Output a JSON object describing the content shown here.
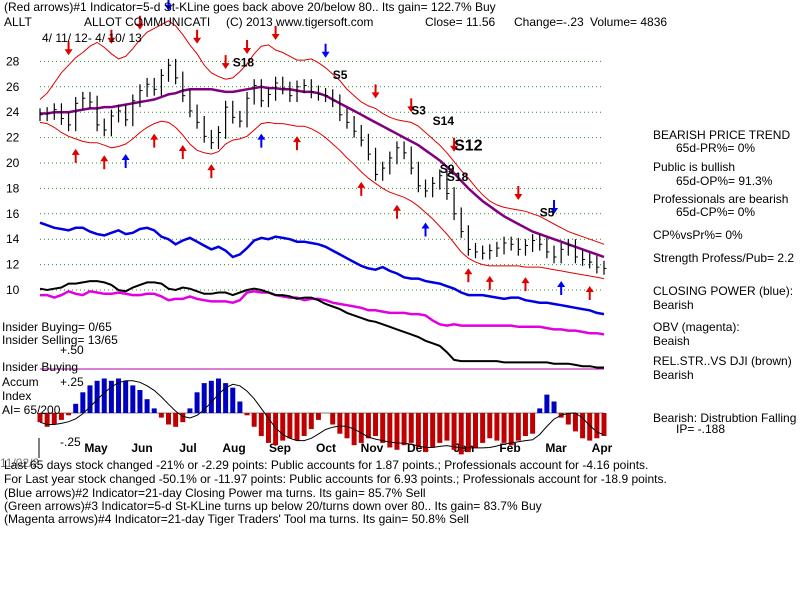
{
  "header": {
    "line1": "(Red arrows)#1 Indicator=5-d St-KLine goes back above 20/below 80..  Its gain= 122.7% Buy",
    "ticker": "ALLT",
    "company": "ALLOT COMMUNICATI",
    "copyright": "(C) 2013 www.tigersoft.com",
    "close": "Close=  11.56",
    "change": "Change=-.23",
    "volume": "Volume= 4836",
    "date_range": "4/ 11/ 12-  4/ 10/ 13"
  },
  "left_labels": {
    "insider_buying": "Insider Buying= 0/65",
    "insider_selling": "Insider Selling= 13/65",
    "plus50": "+.50",
    "insider_buying_line": "Insider Buying",
    "accum": "Accum",
    "plus25": "+.25",
    "index": "Index",
    "ai": "AI= 65/200",
    "minus25": "-.25"
  },
  "right_panel": {
    "bearish_trend": "BEARISH PRICE TREND",
    "pr": "65d-PR%= 0%",
    "public": "Public is bullish",
    "op": "65d-OP%= 91.3%",
    "professionals": "Professionals are bearish",
    "cp": "65d-CP%= 0%",
    "cpvspr": "CP%vsPr%=  0%",
    "strength": "Strength Profess/Pub= 2.2",
    "closing_power": "CLOSING POWER (blue):",
    "cp_state": "Bearish",
    "obv": "OBV (magenta):",
    "obv_state": "Beaish",
    "relstr": "REL.STR..VS DJI (brown)",
    "relstr_state": "Bearish",
    "dist": "Bearish: Distrubtion Falling",
    "ip": "IP= -.188"
  },
  "footer": {
    "line1": "Last 65 days stock changed -21% or -2.29 points:  Public accounts for  1.87 points.;  Professionals account for -4.16 points.",
    "overlap": "11/02/2",
    "line2": "For Last year stock changed -50.1% or -11.97 points:  Public accounts for  6.93 points.;  Professionals account for -18.9 points.",
    "line3": "(Blue arrows)#2 Indicator=21-day Closing Power ma turns.  Its gain= 85.7% Sell",
    "line4": "(Green arrows)#3 Indicator=5-d St-KLine turns up below 20/turns down over 80..  Its gain= 83.7% Buy",
    "line5": "(Magenta arrows)#4 Indicator=21-day Tiger Traders' Tool ma turns.  Its gain= 50.8% Sell"
  },
  "chart_data": {
    "type": "line",
    "title": "ALLT price with Closing Power, OBV, Rel.Str and Accumulation Index",
    "months": [
      "May",
      "Jun",
      "Jul",
      "Aug",
      "Sep",
      "Oct",
      "Nov",
      "Dec",
      "Jan",
      "Feb",
      "Mar",
      "Apr"
    ],
    "y_ticks": [
      10,
      12,
      14,
      16,
      18,
      20,
      22,
      24,
      26,
      28
    ],
    "ylim": [
      10,
      28
    ],
    "price_close": [
      23.8,
      23.9,
      24.2,
      23.5,
      23.0,
      24.7,
      25.1,
      24.8,
      23.0,
      22.6,
      23.7,
      24.1,
      23.4,
      24.9,
      25.7,
      26.2,
      25.8,
      26.9,
      27.7,
      26.7,
      25.3,
      24.1,
      23.2,
      22.1,
      21.6,
      22.4,
      24.4,
      23.6,
      23.3,
      25.1,
      26.1,
      24.9,
      25.4,
      26.3,
      25.9,
      25.3,
      26.0,
      26.1,
      25.6,
      25.4,
      25.3,
      24.9,
      23.8,
      23.2,
      22.5,
      21.8,
      20.7,
      19.1,
      19.6,
      20.4,
      21.2,
      20.8,
      19.6,
      18.2,
      17.8,
      18.4,
      19.0,
      17.6,
      16.0,
      14.6,
      13.2,
      13.0,
      12.9,
      13.1,
      13.3,
      13.7,
      13.6,
      13.2,
      13.5,
      13.9,
      13.6,
      13.0,
      12.6,
      13.2,
      13.5,
      12.6,
      12.4,
      12.2,
      11.8,
      11.7
    ],
    "upper_band": [
      25.0,
      25.5,
      26.3,
      27.1,
      27.7,
      28.3,
      28.7,
      29.2,
      29.5,
      29.1,
      28.6,
      28.2,
      28.4,
      29.0,
      29.7,
      30.3,
      30.6,
      30.9,
      31.2,
      30.8,
      30.1,
      29.3,
      28.6,
      27.7,
      27.1,
      26.8,
      26.6,
      26.7,
      27.2,
      27.8,
      28.6,
      29.2,
      29.3,
      28.9,
      28.7,
      28.4,
      28.1,
      28.1,
      28.2,
      27.9,
      27.5,
      27.0,
      26.5,
      25.8,
      25.3,
      24.8,
      24.5,
      24.3,
      23.9,
      23.6,
      23.4,
      23.3,
      23.2,
      22.9,
      22.4,
      21.9,
      21.4,
      20.8,
      20.1,
      19.4,
      18.8,
      18.1,
      17.5,
      17.0,
      16.7,
      16.5,
      16.4,
      16.3,
      16.2,
      16.0,
      15.8,
      15.5,
      15.2,
      14.9,
      14.6,
      14.4,
      14.2,
      14.0,
      13.8,
      13.6
    ],
    "lower_band": [
      23.2,
      23.1,
      22.8,
      22.4,
      22.1,
      21.9,
      21.7,
      21.6,
      21.6,
      21.4,
      21.2,
      21.3,
      21.5,
      21.9,
      22.4,
      22.8,
      23.1,
      23.3,
      23.2,
      22.8,
      22.2,
      21.5,
      21.0,
      20.8,
      20.7,
      20.9,
      21.5,
      21.8,
      21.9,
      22.1,
      22.6,
      23.1,
      23.2,
      23.1,
      23.1,
      23.0,
      22.9,
      22.9,
      22.7,
      22.4,
      22.0,
      21.5,
      21.0,
      20.4,
      19.9,
      19.3,
      18.8,
      18.4,
      18.0,
      17.7,
      17.5,
      17.3,
      17.0,
      16.6,
      16.1,
      15.6,
      15.0,
      14.4,
      13.7,
      13.0,
      12.5,
      12.2,
      12.0,
      11.9,
      11.9,
      11.9,
      11.9,
      11.9,
      11.8,
      11.8,
      11.8,
      11.7,
      11.6,
      11.5,
      11.4,
      11.3,
      11.2,
      11.1,
      11.0,
      10.9
    ],
    "ma50": [
      23.9,
      23.9,
      24.0,
      24.0,
      24.0,
      24.1,
      24.2,
      24.3,
      24.3,
      24.4,
      24.4,
      24.5,
      24.6,
      24.7,
      24.8,
      24.9,
      25.0,
      25.2,
      25.4,
      25.5,
      25.7,
      25.8,
      25.8,
      25.8,
      25.8,
      25.7,
      25.6,
      25.6,
      25.7,
      25.8,
      25.9,
      26.0,
      25.9,
      25.9,
      25.8,
      25.8,
      25.7,
      25.6,
      25.6,
      25.5,
      25.3,
      25.0,
      24.7,
      24.4,
      24.1,
      23.8,
      23.5,
      23.2,
      22.9,
      22.6,
      22.3,
      22.0,
      21.7,
      21.4,
      21.0,
      20.6,
      20.2,
      19.7,
      19.2,
      18.6,
      18.0,
      17.5,
      17.0,
      16.6,
      16.2,
      15.8,
      15.5,
      15.2,
      14.9,
      14.6,
      14.4,
      14.2,
      14.0,
      13.8,
      13.6,
      13.4,
      13.2,
      13.0,
      12.8,
      12.6
    ],
    "closing_power": [
      15.3,
      15.1,
      14.9,
      14.8,
      14.7,
      14.9,
      14.9,
      14.6,
      14.4,
      14.3,
      14.5,
      14.7,
      14.4,
      14.5,
      14.8,
      14.9,
      14.7,
      14.2,
      14.0,
      13.6,
      13.9,
      14.1,
      13.8,
      13.5,
      13.2,
      13.4,
      13.1,
      12.6,
      12.8,
      13.3,
      13.9,
      14.1,
      14.0,
      14.2,
      14.1,
      14.0,
      13.8,
      13.8,
      13.7,
      13.6,
      13.4,
      13.1,
      12.8,
      12.5,
      12.2,
      11.9,
      11.7,
      11.6,
      11.8,
      11.5,
      11.3,
      11.0,
      10.9,
      10.9,
      10.7,
      10.6,
      10.5,
      10.3,
      10.1,
      9.8,
      9.6,
      9.6,
      9.6,
      9.5,
      9.4,
      9.3,
      9.4,
      9.4,
      9.2,
      9.1,
      9.0,
      9.0,
      8.9,
      8.8,
      8.7,
      8.6,
      8.5,
      8.4,
      8.2,
      8.1
    ],
    "obv": [
      9.6,
      9.6,
      9.4,
      9.6,
      9.9,
      9.7,
      9.6,
      9.9,
      9.8,
      9.7,
      9.7,
      9.8,
      9.7,
      9.6,
      9.6,
      9.7,
      9.7,
      9.5,
      9.2,
      9.3,
      9.3,
      9.5,
      9.3,
      9.2,
      9.1,
      9.1,
      9.1,
      9.0,
      9.2,
      9.8,
      9.9,
      9.8,
      9.8,
      9.6,
      9.5,
      9.4,
      9.4,
      9.2,
      9.3,
      9.3,
      9.2,
      9.0,
      8.9,
      8.8,
      8.7,
      8.6,
      8.4,
      8.4,
      8.3,
      8.2,
      8.2,
      8.2,
      8.1,
      8.1,
      8.0,
      7.6,
      7.3,
      7.2,
      7.3,
      7.2,
      7.2,
      7.2,
      7.2,
      7.2,
      7.2,
      7.2,
      7.2,
      7.1,
      7.1,
      7.1,
      7.1,
      7.0,
      6.9,
      6.9,
      6.8,
      6.8,
      6.7,
      6.6,
      6.6,
      6.5
    ],
    "rel_str": [
      10.1,
      10.0,
      10.1,
      10.2,
      10.5,
      10.5,
      10.6,
      10.7,
      10.7,
      10.6,
      10.4,
      10.0,
      9.9,
      10.2,
      10.4,
      10.6,
      10.6,
      10.5,
      10.1,
      10.0,
      10.2,
      10.1,
      9.9,
      9.7,
      9.7,
      9.8,
      9.8,
      9.6,
      9.8,
      10.0,
      10.1,
      10.0,
      9.8,
      9.6,
      9.6,
      9.5,
      9.3,
      9.4,
      9.4,
      9.2,
      8.9,
      8.7,
      8.5,
      8.2,
      8.0,
      7.8,
      7.6,
      7.5,
      7.3,
      7.1,
      6.9,
      6.7,
      6.5,
      6.3,
      6.0,
      5.8,
      5.6,
      5.1,
      4.5,
      4.4,
      4.4,
      4.4,
      4.4,
      4.4,
      4.4,
      4.3,
      4.3,
      4.3,
      4.3,
      4.3,
      4.3,
      4.3,
      4.2,
      4.2,
      4.2,
      4.1,
      4.0,
      4.0,
      3.9,
      3.9
    ],
    "accum_index": [
      -0.04,
      -0.06,
      -0.05,
      -0.03,
      -0.01,
      0.04,
      0.09,
      0.12,
      0.14,
      0.15,
      0.14,
      0.15,
      0.14,
      0.12,
      0.1,
      0.06,
      0.02,
      -0.02,
      -0.05,
      -0.06,
      -0.04,
      0.02,
      0.09,
      0.13,
      0.14,
      0.15,
      0.13,
      0.11,
      0.05,
      -0.01,
      -0.06,
      -0.1,
      -0.13,
      -0.14,
      -0.12,
      -0.11,
      -0.12,
      -0.1,
      -0.07,
      -0.03,
      0.0,
      -0.05,
      -0.09,
      -0.11,
      -0.14,
      -0.13,
      -0.11,
      -0.1,
      -0.13,
      -0.15,
      -0.16,
      -0.14,
      -0.13,
      -0.15,
      -0.17,
      -0.15,
      -0.13,
      -0.12,
      -0.16,
      -0.18,
      -0.17,
      -0.15,
      -0.13,
      -0.11,
      -0.12,
      -0.13,
      -0.14,
      -0.12,
      -0.1,
      -0.09,
      0.02,
      0.08,
      0.05,
      -0.02,
      -0.05,
      -0.08,
      -0.11,
      -0.12,
      -0.11,
      -0.1
    ],
    "signals": [
      {
        "label": "S18",
        "i": 27,
        "v": 27.6
      },
      {
        "label": "S5",
        "i": 41,
        "v": 26.6
      },
      {
        "label": "S3",
        "i": 52,
        "v": 23.8
      },
      {
        "label": "S14",
        "i": 55,
        "v": 23.0
      },
      {
        "label": "S12",
        "i": 58,
        "v": 21.0
      },
      {
        "label": "S9",
        "i": 56,
        "v": 19.2
      },
      {
        "label": "S18",
        "i": 57,
        "v": 18.6
      },
      {
        "label": "S5",
        "i": 70,
        "v": 15.8
      }
    ]
  }
}
